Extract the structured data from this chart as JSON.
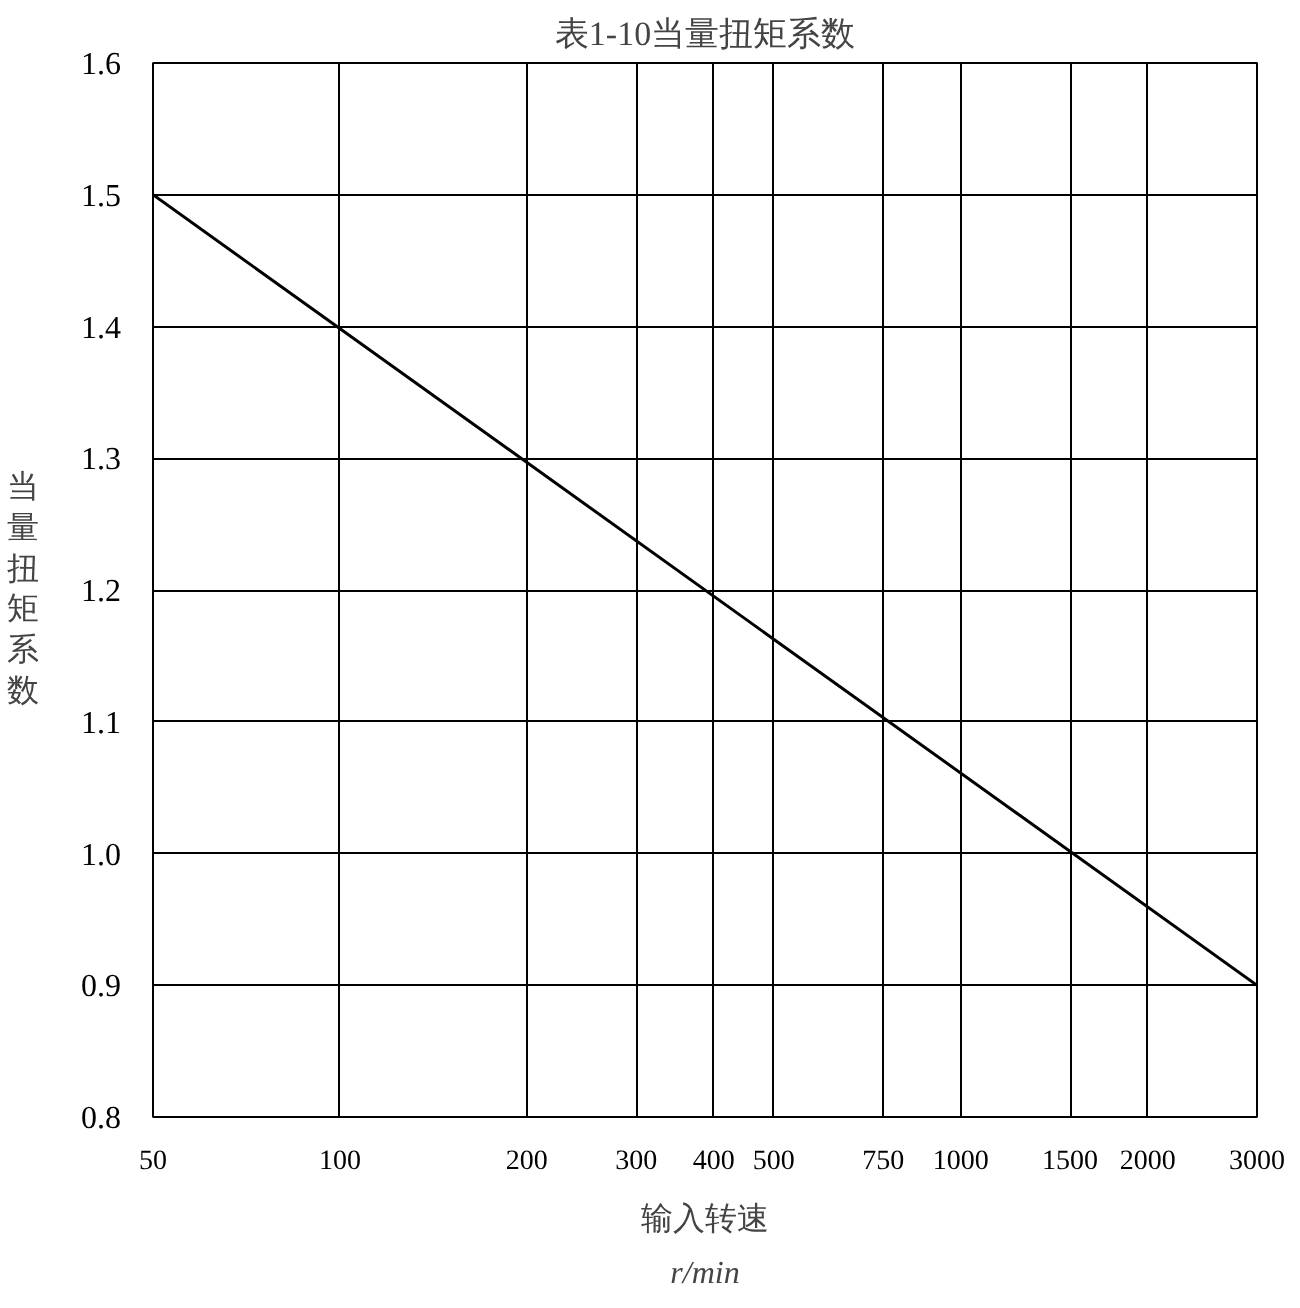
{
  "chart_data": {
    "type": "line",
    "title": "表1-10当量扭矩系数",
    "xlabel": "输入转速",
    "ylabel": "当量扭矩系数",
    "annotations": [
      "r/min"
    ],
    "x": [
      50,
      3000
    ],
    "series": [
      {
        "color": "#000000",
        "values": [
          1.5,
          0.9
        ]
      }
    ],
    "xlim": [
      50,
      3000
    ],
    "xticks": [
      50,
      100,
      200,
      300,
      400,
      500,
      750,
      1000,
      1500,
      2000,
      3000
    ],
    "ylim": [
      0.8,
      1.6
    ],
    "yticks": [
      0.8,
      0.9,
      {
        "value": 1,
        "label": "1.0"
      },
      1.1,
      1.2,
      1.3,
      1.4,
      1.5,
      1.6
    ],
    "log": "x",
    "grid": true,
    "marker": "none",
    "line_style": "solid"
  }
}
